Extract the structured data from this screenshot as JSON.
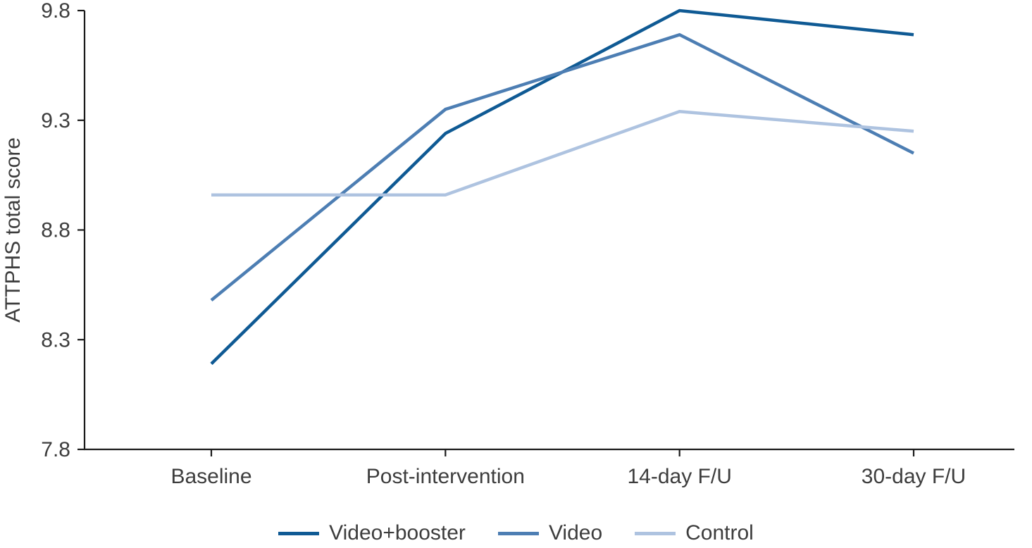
{
  "chart_data": {
    "type": "line",
    "title": "",
    "xlabel": "",
    "ylabel": "ATTPHS total score",
    "categories": [
      "Baseline",
      "Post-intervention",
      "14-day F/U",
      "30-day F/U"
    ],
    "y_ticks": [
      7.8,
      8.3,
      8.8,
      9.3,
      9.8
    ],
    "ylim": [
      7.8,
      9.8
    ],
    "grid": false,
    "legend_position": "bottom",
    "axis_color": "#1a1a1a",
    "text_color": "#3d3d3d",
    "series": [
      {
        "name": "Video+booster",
        "color": "#0f5a94",
        "values": [
          8.19,
          9.24,
          9.8,
          9.69
        ]
      },
      {
        "name": "Video",
        "color": "#4d7eb3",
        "values": [
          8.48,
          9.35,
          9.69,
          9.15
        ]
      },
      {
        "name": "Control",
        "color": "#aec3e0",
        "values": [
          8.96,
          8.96,
          9.34,
          9.25
        ]
      }
    ]
  }
}
